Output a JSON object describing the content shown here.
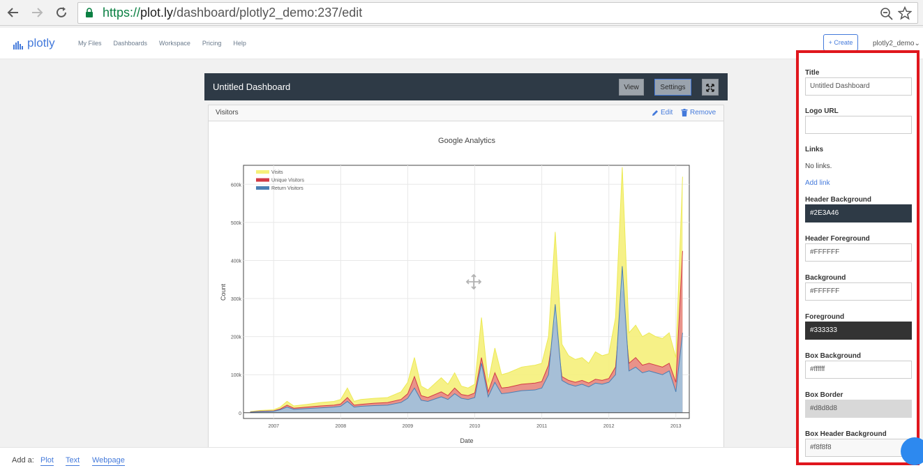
{
  "browser": {
    "url_https": "https://",
    "url_domain": "plot.ly",
    "url_path": "/dashboard/plotly2_demo:237/edit"
  },
  "app": {
    "logo_text": "plotly",
    "menu": [
      "My Files",
      "Dashboards",
      "Workspace",
      "Pricing",
      "Help"
    ],
    "create_label": "+ Create",
    "user": "plotly2_demo",
    "accent": "#447adb"
  },
  "dashboard": {
    "title": "Untitled Dashboard",
    "view_label": "View",
    "settings_label": "Settings",
    "header_bg": "#2E3A46",
    "box": {
      "title": "Visitors",
      "edit_label": "Edit",
      "remove_label": "Remove"
    }
  },
  "bottom": {
    "add_label": "Add a:",
    "links": [
      "Plot",
      "Text",
      "Webpage"
    ]
  },
  "settings": {
    "title_label": "Title",
    "title_value": "Untitled Dashboard",
    "logo_label": "Logo URL",
    "logo_value": "",
    "links_label": "Links",
    "no_links": "No links.",
    "add_link": "Add link",
    "header_bg_label": "Header Background",
    "header_bg_value": "#2E3A46",
    "header_fg_label": "Header Foreground",
    "header_fg_value": "#FFFFFF",
    "bg_label": "Background",
    "bg_value": "#FFFFFF",
    "fg_label": "Foreground",
    "fg_value": "#333333",
    "box_bg_label": "Box Background",
    "box_bg_value": "#ffffff",
    "box_border_label": "Box Border",
    "box_border_value": "#d8d8d8",
    "box_header_bg_label": "Box Header Background",
    "box_header_bg_value": "#f8f8f8"
  },
  "chart_data": {
    "type": "area",
    "title": "Google Analytics",
    "xlabel": "Date",
    "ylabel": "Count",
    "ylim": [
      0,
      650000
    ],
    "y_ticks": [
      0,
      100000,
      200000,
      300000,
      400000,
      500000,
      600000
    ],
    "y_tick_labels": [
      "0",
      "100k",
      "200k",
      "300k",
      "400k",
      "500k",
      "600k"
    ],
    "x_tick_labels": [
      "2007",
      "2008",
      "2009",
      "2010",
      "2011",
      "2012",
      "2013"
    ],
    "legend_position": "top-left",
    "x": [
      2006.65,
      2006.8,
      2007.0,
      2007.1,
      2007.2,
      2007.3,
      2007.5,
      2007.7,
      2007.9,
      2008.0,
      2008.1,
      2008.2,
      2008.3,
      2008.5,
      2008.7,
      2008.9,
      2009.0,
      2009.1,
      2009.2,
      2009.3,
      2009.5,
      2009.6,
      2009.7,
      2009.8,
      2009.9,
      2010.0,
      2010.1,
      2010.2,
      2010.3,
      2010.4,
      2010.5,
      2010.7,
      2010.9,
      2011.0,
      2011.1,
      2011.2,
      2011.3,
      2011.4,
      2011.5,
      2011.6,
      2011.7,
      2011.8,
      2011.9,
      2012.0,
      2012.1,
      2012.2,
      2012.3,
      2012.4,
      2012.5,
      2012.6,
      2012.7,
      2012.8,
      2012.9,
      2013.0,
      2013.1
    ],
    "series": [
      {
        "name": "Visits",
        "color": "#f5f07a",
        "values": [
          3000,
          6000,
          8000,
          15000,
          30000,
          18000,
          22000,
          27000,
          30000,
          35000,
          65000,
          30000,
          35000,
          38000,
          40000,
          55000,
          80000,
          145000,
          70000,
          60000,
          92000,
          75000,
          105000,
          70000,
          65000,
          75000,
          250000,
          80000,
          170000,
          100000,
          105000,
          120000,
          125000,
          130000,
          200000,
          475000,
          180000,
          150000,
          140000,
          145000,
          130000,
          160000,
          150000,
          155000,
          250000,
          645000,
          210000,
          230000,
          200000,
          210000,
          200000,
          195000,
          210000,
          145000,
          620000
        ]
      },
      {
        "name": "Unique Visitors",
        "color": "#e8878a",
        "values": [
          2000,
          4000,
          5000,
          10000,
          20000,
          12000,
          15000,
          18000,
          20000,
          23000,
          40000,
          20000,
          22000,
          25000,
          27000,
          35000,
          50000,
          95000,
          45000,
          40000,
          55000,
          45000,
          65000,
          48000,
          45000,
          52000,
          145000,
          55000,
          105000,
          65000,
          67000,
          75000,
          78000,
          82000,
          125000,
          240000,
          95000,
          85000,
          80000,
          85000,
          78000,
          88000,
          85000,
          90000,
          120000,
          320000,
          130000,
          145000,
          125000,
          130000,
          125000,
          120000,
          130000,
          80000,
          425000
        ]
      },
      {
        "name": "Return Visitors",
        "color": "#9fc4e0",
        "values": [
          1500,
          3000,
          4000,
          8000,
          15000,
          9000,
          11000,
          13000,
          15000,
          17000,
          30000,
          15000,
          17000,
          19000,
          20000,
          27000,
          38000,
          65000,
          33000,
          30000,
          42000,
          35000,
          50000,
          38000,
          35000,
          40000,
          130000,
          42000,
          80000,
          50000,
          52000,
          58000,
          60000,
          65000,
          100000,
          285000,
          85000,
          75000,
          70000,
          75000,
          68000,
          78000,
          75000,
          80000,
          100000,
          385000,
          110000,
          120000,
          105000,
          110000,
          105000,
          100000,
          110000,
          55000,
          210000
        ]
      }
    ]
  }
}
